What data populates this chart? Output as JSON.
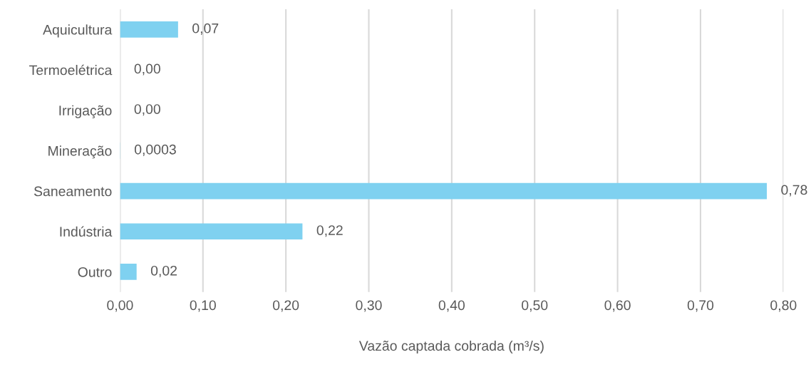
{
  "chart_data": {
    "type": "bar",
    "orientation": "horizontal",
    "categories": [
      "Aquicultura",
      "Termoelétrica",
      "Irrigação",
      "Mineração",
      "Saneamento",
      "Indústria",
      "Outro"
    ],
    "values": [
      0.07,
      0.0,
      0.0,
      0.0003,
      0.78,
      0.22,
      0.02
    ],
    "value_labels": [
      "0,07",
      "0,00",
      "0,00",
      "0,0003",
      "0,78",
      "0,22",
      "0,02"
    ],
    "color": "#7fd1f0",
    "xlabel": "Vazão captada cobrada (m³/s)",
    "xlim": [
      0,
      0.8
    ],
    "xticks": [
      {
        "value": 0,
        "label": "0,00"
      },
      {
        "value": 0.1,
        "label": "0,10"
      },
      {
        "value": 0.2,
        "label": "0,20"
      },
      {
        "value": 0.3,
        "label": "0,30"
      },
      {
        "value": 0.4,
        "label": "0,40"
      },
      {
        "value": 0.5,
        "label": "0,50"
      },
      {
        "value": 0.6,
        "label": "0,60"
      },
      {
        "value": 0.7,
        "label": "0,70"
      },
      {
        "value": 0.8,
        "label": "0,80"
      }
    ],
    "grid": "x"
  }
}
